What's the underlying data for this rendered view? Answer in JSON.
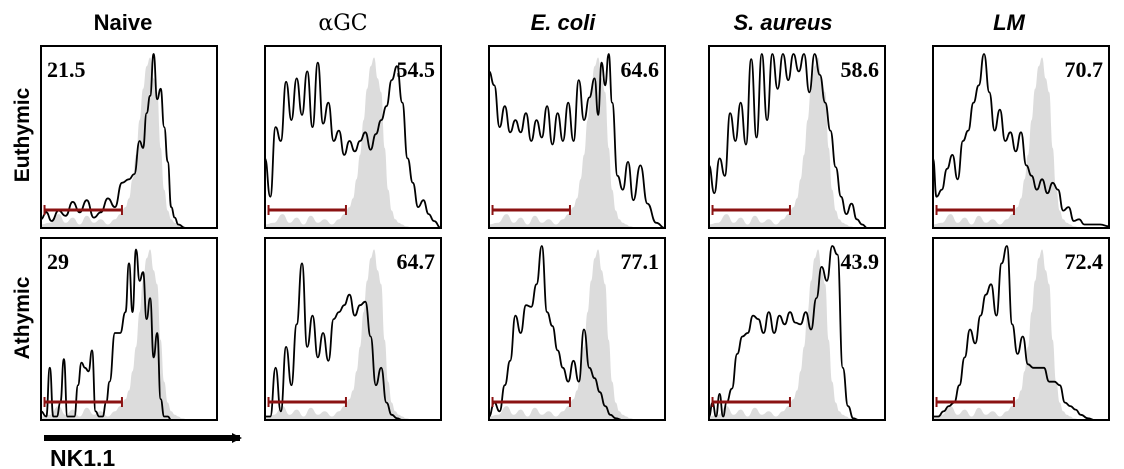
{
  "chart_data": {
    "type": "histogram-grid",
    "columns": [
      "Naive",
      "αGC",
      "E. coli",
      "S. aureus",
      "LM"
    ],
    "columns_italic": [
      false,
      false,
      true,
      true,
      true
    ],
    "rows": [
      "Euthymic",
      "Athymic"
    ],
    "xlabel": "NK1.1",
    "gate_percentages": [
      [
        "21.5",
        "54.5",
        "64.6",
        "58.6",
        "70.7"
      ],
      [
        "29",
        "64.7",
        "77.1",
        "43.9",
        "72.4"
      ]
    ],
    "gate_label_side": [
      [
        "left",
        "right",
        "right",
        "right",
        "right"
      ],
      [
        "left",
        "right",
        "right",
        "right",
        "right"
      ]
    ],
    "x_range": [
      0,
      1
    ],
    "y_range": [
      0,
      1
    ],
    "gate_range": [
      0.02,
      0.46
    ],
    "reference": {
      "x": [
        0,
        0.05,
        0.1,
        0.14,
        0.18,
        0.22,
        0.26,
        0.3,
        0.34,
        0.38,
        0.42,
        0.45,
        0.48,
        0.5,
        0.52,
        0.54,
        0.56,
        0.58,
        0.6,
        0.62,
        0.64,
        0.66,
        0.68,
        0.7,
        0.72,
        0.74,
        0.76,
        0.78,
        0.8,
        0.84,
        0.9,
        1
      ],
      "y": [
        0.02,
        0.03,
        0.08,
        0.03,
        0.06,
        0.02,
        0.07,
        0.03,
        0.05,
        0.02,
        0.05,
        0.08,
        0.12,
        0.17,
        0.28,
        0.42,
        0.62,
        0.8,
        0.93,
        0.98,
        0.86,
        0.78,
        0.46,
        0.22,
        0.1,
        0.05,
        0.03,
        0.02,
        0.01,
        0,
        0,
        0
      ]
    },
    "samples": [
      [
        {
          "x": [
            0,
            0.03,
            0.06,
            0.1,
            0.14,
            0.18,
            0.22,
            0.26,
            0.3,
            0.34,
            0.38,
            0.42,
            0.46,
            0.5,
            0.53,
            0.56,
            0.58,
            0.6,
            0.62,
            0.64,
            0.66,
            0.68,
            0.7,
            0.72,
            0.74,
            0.76,
            0.78,
            0.82,
            0.88,
            1
          ],
          "y": [
            0.05,
            0.09,
            0.04,
            0.1,
            0.07,
            0.15,
            0.09,
            0.16,
            0.06,
            0.09,
            0.17,
            0.12,
            0.26,
            0.28,
            0.31,
            0.5,
            0.46,
            0.66,
            0.76,
            1.0,
            0.74,
            0.8,
            0.58,
            0.38,
            0.12,
            0.06,
            0.02,
            0,
            0,
            0
          ]
        },
        {
          "x": [
            0,
            0.03,
            0.06,
            0.09,
            0.12,
            0.15,
            0.18,
            0.21,
            0.24,
            0.27,
            0.3,
            0.33,
            0.36,
            0.39,
            0.42,
            0.45,
            0.48,
            0.51,
            0.54,
            0.57,
            0.6,
            0.63,
            0.66,
            0.69,
            0.72,
            0.75,
            0.78,
            0.81,
            0.84,
            0.87,
            0.9,
            0.93,
            0.96,
            1
          ],
          "y": [
            0.4,
            0.18,
            0.58,
            0.5,
            0.84,
            0.62,
            0.86,
            0.65,
            0.9,
            0.58,
            0.95,
            0.6,
            0.72,
            0.5,
            0.56,
            0.42,
            0.5,
            0.44,
            0.5,
            0.55,
            0.45,
            0.54,
            0.62,
            0.7,
            0.85,
            0.93,
            0.72,
            0.4,
            0.26,
            0.12,
            0.16,
            0.08,
            0.04,
            0
          ]
        },
        {
          "x": [
            0,
            0.03,
            0.06,
            0.09,
            0.12,
            0.15,
            0.18,
            0.21,
            0.24,
            0.27,
            0.3,
            0.33,
            0.36,
            0.39,
            0.42,
            0.45,
            0.48,
            0.51,
            0.54,
            0.57,
            0.6,
            0.62,
            0.64,
            0.66,
            0.68,
            0.7,
            0.73,
            0.76,
            0.79,
            0.82,
            0.86,
            0.9,
            0.95,
            1
          ],
          "y": [
            0.9,
            0.82,
            0.58,
            0.7,
            0.55,
            0.62,
            0.55,
            0.66,
            0.5,
            0.62,
            0.52,
            0.7,
            0.48,
            0.66,
            0.5,
            0.72,
            0.5,
            0.85,
            0.62,
            0.75,
            0.86,
            0.65,
            0.95,
            0.82,
            1.0,
            0.72,
            0.3,
            0.22,
            0.38,
            0.16,
            0.36,
            0.14,
            0.03,
            0
          ]
        },
        {
          "x": [
            0,
            0.03,
            0.06,
            0.09,
            0.12,
            0.15,
            0.18,
            0.21,
            0.24,
            0.27,
            0.3,
            0.33,
            0.36,
            0.39,
            0.42,
            0.45,
            0.48,
            0.51,
            0.54,
            0.57,
            0.6,
            0.63,
            0.66,
            0.69,
            0.72,
            0.75,
            0.78,
            0.81,
            0.84,
            0.87,
            0.9,
            1
          ],
          "y": [
            0.36,
            0.2,
            0.4,
            0.3,
            0.66,
            0.5,
            0.72,
            0.48,
            0.97,
            0.52,
            1.0,
            0.62,
            1.0,
            0.8,
            1.0,
            0.85,
            1.0,
            0.9,
            1.0,
            0.78,
            1.0,
            0.88,
            0.72,
            0.56,
            0.35,
            0.18,
            0.08,
            0.14,
            0.05,
            0.02,
            0,
            0
          ]
        },
        {
          "x": [
            0,
            0.02,
            0.05,
            0.08,
            0.11,
            0.14,
            0.17,
            0.2,
            0.23,
            0.26,
            0.29,
            0.32,
            0.35,
            0.38,
            0.41,
            0.44,
            0.47,
            0.5,
            0.53,
            0.56,
            0.59,
            0.62,
            0.65,
            0.68,
            0.71,
            0.74,
            0.77,
            0.8,
            0.83,
            0.86,
            0.9,
            0.95,
            1
          ],
          "y": [
            0.4,
            0.18,
            0.22,
            0.34,
            0.42,
            0.28,
            0.5,
            0.56,
            0.72,
            0.82,
            1.0,
            0.78,
            0.56,
            0.68,
            0.5,
            0.55,
            0.44,
            0.55,
            0.36,
            0.3,
            0.22,
            0.28,
            0.2,
            0.26,
            0.22,
            0.1,
            0.12,
            0.04,
            0.05,
            0.02,
            0.02,
            0.02,
            0.01
          ]
        }
      ],
      [
        {
          "x": [
            0,
            0.03,
            0.05,
            0.07,
            0.09,
            0.11,
            0.13,
            0.15,
            0.17,
            0.19,
            0.21,
            0.23,
            0.25,
            0.27,
            0.29,
            0.31,
            0.33,
            0.35,
            0.37,
            0.39,
            0.42,
            0.45,
            0.48,
            0.5,
            0.52,
            0.54,
            0.56,
            0.58,
            0.6,
            0.62,
            0.64,
            0.66,
            0.68,
            0.7,
            0.72,
            0.74,
            0.76,
            0.8,
            0.85,
            0.9,
            1
          ],
          "y": [
            0.05,
            0.02,
            0.3,
            0.02,
            0.02,
            0.1,
            0.35,
            0.02,
            0.02,
            0.02,
            0.2,
            0.33,
            0.3,
            0.28,
            0.4,
            0.05,
            0.02,
            0.02,
            0.1,
            0.22,
            0.5,
            0.5,
            0.62,
            0.9,
            0.62,
            0.98,
            0.8,
            0.85,
            0.58,
            0.7,
            0.36,
            0.5,
            0.12,
            0.02,
            0.02,
            0,
            0,
            0,
            0,
            0,
            0
          ]
        },
        {
          "x": [
            0,
            0.03,
            0.06,
            0.09,
            0.12,
            0.15,
            0.18,
            0.21,
            0.24,
            0.27,
            0.3,
            0.33,
            0.36,
            0.39,
            0.42,
            0.45,
            0.48,
            0.51,
            0.54,
            0.57,
            0.6,
            0.63,
            0.66,
            0.69,
            0.72,
            0.75,
            0.78,
            0.82,
            0.86,
            0.9,
            1
          ],
          "y": [
            0.02,
            0.02,
            0.3,
            0.05,
            0.42,
            0.2,
            0.55,
            0.9,
            0.42,
            0.6,
            0.36,
            0.5,
            0.34,
            0.58,
            0.62,
            0.66,
            0.72,
            0.6,
            0.66,
            0.68,
            0.48,
            0.2,
            0.3,
            0.1,
            0.03,
            0.01,
            0,
            0,
            0,
            0,
            0
          ]
        },
        {
          "x": [
            0,
            0.03,
            0.06,
            0.09,
            0.12,
            0.15,
            0.18,
            0.21,
            0.24,
            0.27,
            0.3,
            0.33,
            0.36,
            0.39,
            0.42,
            0.45,
            0.48,
            0.51,
            0.54,
            0.57,
            0.6,
            0.63,
            0.66,
            0.69,
            0.72,
            0.76,
            0.8,
            0.85,
            0.9,
            1
          ],
          "y": [
            0.02,
            0.1,
            0.05,
            0.2,
            0.34,
            0.6,
            0.5,
            0.66,
            0.65,
            0.78,
            1.0,
            0.62,
            0.54,
            0.4,
            0.3,
            0.22,
            0.34,
            0.22,
            0.52,
            0.3,
            0.24,
            0.16,
            0.08,
            0.03,
            0.01,
            0,
            0,
            0,
            0,
            0
          ]
        },
        {
          "x": [
            0,
            0.02,
            0.04,
            0.06,
            0.08,
            0.1,
            0.13,
            0.16,
            0.19,
            0.22,
            0.25,
            0.28,
            0.31,
            0.34,
            0.37,
            0.4,
            0.43,
            0.46,
            0.49,
            0.52,
            0.55,
            0.58,
            0.61,
            0.64,
            0.67,
            0.7,
            0.73,
            0.76,
            0.79,
            0.82,
            0.85,
            0.9,
            1
          ],
          "y": [
            0.02,
            0.1,
            0.02,
            0.15,
            0.02,
            0.1,
            0.18,
            0.38,
            0.48,
            0.5,
            0.6,
            0.58,
            0.5,
            0.62,
            0.5,
            0.6,
            0.55,
            0.62,
            0.56,
            0.55,
            0.62,
            0.52,
            0.7,
            0.88,
            0.8,
            1.0,
            0.95,
            0.3,
            0.08,
            0.01,
            0,
            0,
            0
          ]
        },
        {
          "x": [
            0,
            0.03,
            0.06,
            0.09,
            0.12,
            0.15,
            0.18,
            0.21,
            0.24,
            0.27,
            0.3,
            0.33,
            0.36,
            0.39,
            0.42,
            0.45,
            0.48,
            0.51,
            0.54,
            0.57,
            0.6,
            0.63,
            0.66,
            0.69,
            0.72,
            0.75,
            0.78,
            0.81,
            0.84,
            0.88,
            0.92,
            0.96,
            1
          ],
          "y": [
            0.02,
            0.02,
            0.05,
            0.08,
            0.1,
            0.2,
            0.36,
            0.52,
            0.44,
            0.6,
            0.72,
            0.78,
            0.6,
            0.9,
            1.0,
            0.55,
            0.38,
            0.48,
            0.32,
            0.3,
            0.3,
            0.3,
            0.22,
            0.22,
            0.2,
            0.1,
            0.08,
            0.06,
            0.03,
            0.01,
            0,
            0,
            0
          ]
        }
      ]
    ]
  },
  "colors": {
    "reference_fill": "#dcdcdc",
    "sample_line": "#000000",
    "gate": "#8b1212",
    "frame": "#000000"
  }
}
